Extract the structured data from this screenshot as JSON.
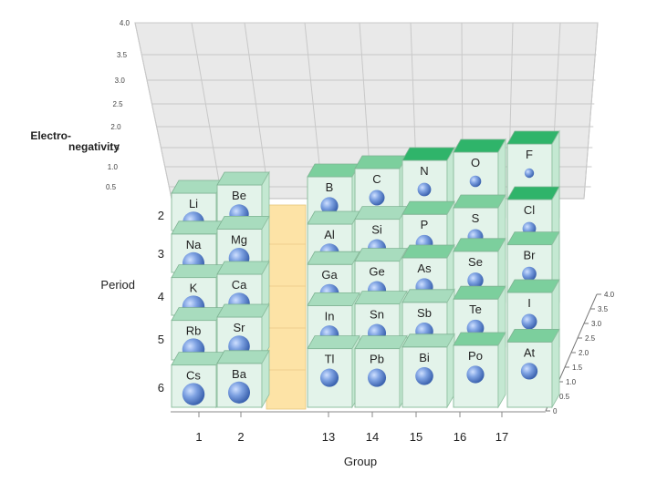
{
  "chart_data": {
    "type": "bar",
    "title": "",
    "y_axis_label": "Electro-\nnegativity",
    "y_ticks": [
      "0.5",
      "1.0",
      "1.5",
      "2.0",
      "2.5",
      "3.0",
      "3.5",
      "4.0"
    ],
    "y_range": [
      0,
      4.0
    ],
    "right_axis_ticks": [
      "0",
      "0.5",
      "1.0",
      "1.5",
      "2.0",
      "2.5",
      "3.0",
      "3.5",
      "4.0"
    ],
    "period_label": "Period",
    "periods": [
      "2",
      "3",
      "4",
      "5",
      "6"
    ],
    "group_label": "Group",
    "groups": [
      "1",
      "2",
      "13",
      "14",
      "15",
      "16",
      "17"
    ],
    "series": [
      {
        "group": "1",
        "elements": [
          {
            "symbol": "Li",
            "period": 2,
            "en": 1.0
          },
          {
            "symbol": "Na",
            "period": 3,
            "en": 0.9
          },
          {
            "symbol": "K",
            "period": 4,
            "en": 0.8
          },
          {
            "symbol": "Rb",
            "period": 5,
            "en": 0.8
          },
          {
            "symbol": "Cs",
            "period": 6,
            "en": 0.8
          }
        ]
      },
      {
        "group": "2",
        "elements": [
          {
            "symbol": "Be",
            "period": 2,
            "en": 1.5
          },
          {
            "symbol": "Mg",
            "period": 3,
            "en": 1.2
          },
          {
            "symbol": "Ca",
            "period": 4,
            "en": 1.0
          },
          {
            "symbol": "Sr",
            "period": 5,
            "en": 1.0
          },
          {
            "symbol": "Ba",
            "period": 6,
            "en": 0.9
          }
        ]
      },
      {
        "group": "13",
        "elements": [
          {
            "symbol": "B",
            "period": 2,
            "en": 2.0
          },
          {
            "symbol": "Al",
            "period": 3,
            "en": 1.5
          },
          {
            "symbol": "Ga",
            "period": 4,
            "en": 1.6
          },
          {
            "symbol": "In",
            "period": 5,
            "en": 1.7
          },
          {
            "symbol": "Tl",
            "period": 6,
            "en": 1.8
          }
        ]
      },
      {
        "group": "14",
        "elements": [
          {
            "symbol": "C",
            "period": 2,
            "en": 2.5
          },
          {
            "symbol": "Si",
            "period": 3,
            "en": 1.8
          },
          {
            "symbol": "Ge",
            "period": 4,
            "en": 1.8
          },
          {
            "symbol": "Sn",
            "period": 5,
            "en": 1.8
          },
          {
            "symbol": "Pb",
            "period": 6,
            "en": 1.8
          }
        ]
      },
      {
        "group": "15",
        "elements": [
          {
            "symbol": "N",
            "period": 2,
            "en": 3.0
          },
          {
            "symbol": "P",
            "period": 3,
            "en": 2.1
          },
          {
            "symbol": "As",
            "period": 4,
            "en": 2.0
          },
          {
            "symbol": "Sb",
            "period": 5,
            "en": 1.9
          },
          {
            "symbol": "Bi",
            "period": 6,
            "en": 1.9
          }
        ]
      },
      {
        "group": "16",
        "elements": [
          {
            "symbol": "O",
            "period": 2,
            "en": 3.5
          },
          {
            "symbol": "S",
            "period": 3,
            "en": 2.5
          },
          {
            "symbol": "Se",
            "period": 4,
            "en": 2.4
          },
          {
            "symbol": "Te",
            "period": 5,
            "en": 2.1
          },
          {
            "symbol": "Po",
            "period": 6,
            "en": 2.0
          }
        ]
      },
      {
        "group": "17",
        "elements": [
          {
            "symbol": "F",
            "period": 2,
            "en": 4.0
          },
          {
            "symbol": "Cl",
            "period": 3,
            "en": 3.0
          },
          {
            "symbol": "Br",
            "period": 4,
            "en": 2.8
          },
          {
            "symbol": "I",
            "period": 5,
            "en": 2.5
          },
          {
            "symbol": "At",
            "period": 6,
            "en": 2.2
          }
        ]
      }
    ],
    "colors": {
      "top_face": "#a8dcbe",
      "tall_top_face": "#7ccf9d",
      "deep_top_face": "#2fb46a",
      "front_face": "#e3f3ea",
      "side_face": "#c4e8d2",
      "transition_gap": "#fde3a6",
      "atom": "#6d93d3",
      "grid_wall": "#e9e9e9"
    }
  }
}
